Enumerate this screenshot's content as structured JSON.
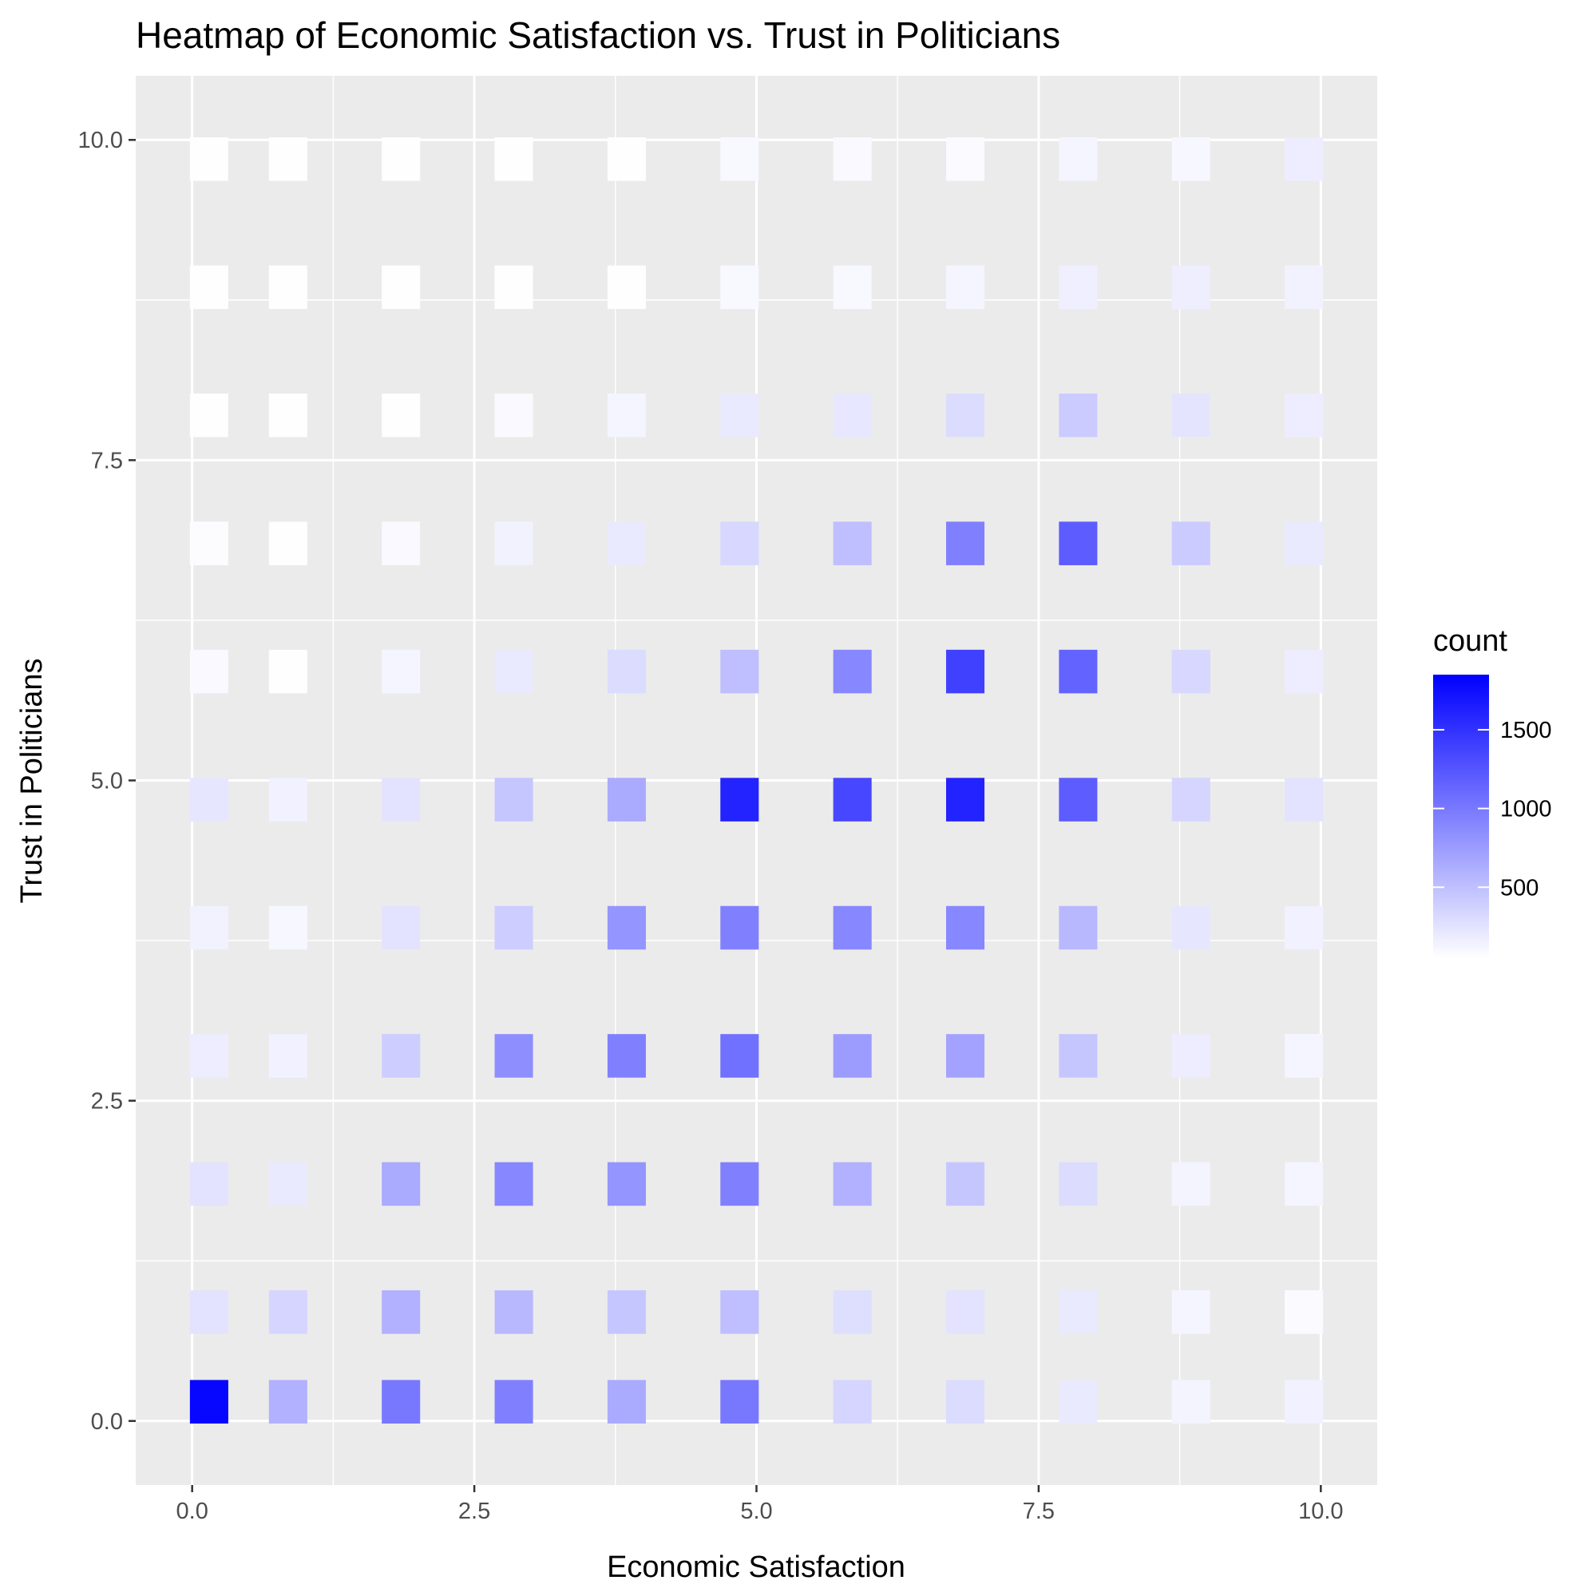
{
  "chart_data": {
    "type": "heatmap",
    "title": "Heatmap of Economic Satisfaction vs. Trust in Politicians",
    "xlabel": "Economic Satisfaction",
    "ylabel": "Trust in Politicians",
    "x_ticks": [
      "0.0",
      "2.5",
      "5.0",
      "7.5",
      "10.0"
    ],
    "y_ticks": [
      "0.0",
      "2.5",
      "5.0",
      "7.5",
      "10.0"
    ],
    "xlim": [
      -0.5,
      10.5
    ],
    "ylim": [
      -0.5,
      10.5
    ],
    "x_bins": [
      0.15,
      0.85,
      1.85,
      2.85,
      3.85,
      4.85,
      5.85,
      6.85,
      7.85,
      8.85,
      9.85
    ],
    "y_bins": [
      0.15,
      0.85,
      1.85,
      2.85,
      3.85,
      4.85,
      5.85,
      6.85,
      7.85,
      8.85,
      9.85
    ],
    "counts": [
      [
        1800,
        600,
        1000,
        950,
        650,
        1000,
        350,
        300,
        200,
        130,
        150
      ],
      [
        250,
        350,
        600,
        550,
        450,
        500,
        280,
        250,
        200,
        120,
        80
      ],
      [
        250,
        200,
        650,
        900,
        800,
        950,
        600,
        450,
        300,
        130,
        120
      ],
      [
        180,
        150,
        400,
        850,
        950,
        1050,
        750,
        700,
        450,
        180,
        120
      ],
      [
        140,
        110,
        250,
        400,
        800,
        950,
        900,
        900,
        550,
        230,
        150
      ],
      [
        230,
        150,
        250,
        450,
        650,
        1600,
        1350,
        1600,
        1200,
        350,
        250
      ],
      [
        90,
        60,
        120,
        200,
        300,
        500,
        900,
        1400,
        1150,
        330,
        180
      ],
      [
        70,
        60,
        90,
        140,
        200,
        330,
        500,
        950,
        1200,
        420,
        200
      ],
      [
        60,
        55,
        60,
        90,
        120,
        200,
        220,
        300,
        420,
        240,
        180
      ],
      [
        55,
        55,
        55,
        60,
        60,
        100,
        100,
        120,
        160,
        170,
        140
      ],
      [
        55,
        60,
        55,
        60,
        60,
        100,
        90,
        80,
        120,
        110,
        180
      ]
    ],
    "color_scale": {
      "low": "#ffffff",
      "high": "#0000ff",
      "min": 50,
      "max": 1850
    },
    "legend": {
      "title": "count",
      "labels": [
        "500",
        "1000",
        "1500"
      ],
      "values": [
        500,
        1000,
        1500
      ],
      "position": "right"
    },
    "grid": true,
    "panel_background": "#ebebeb"
  }
}
